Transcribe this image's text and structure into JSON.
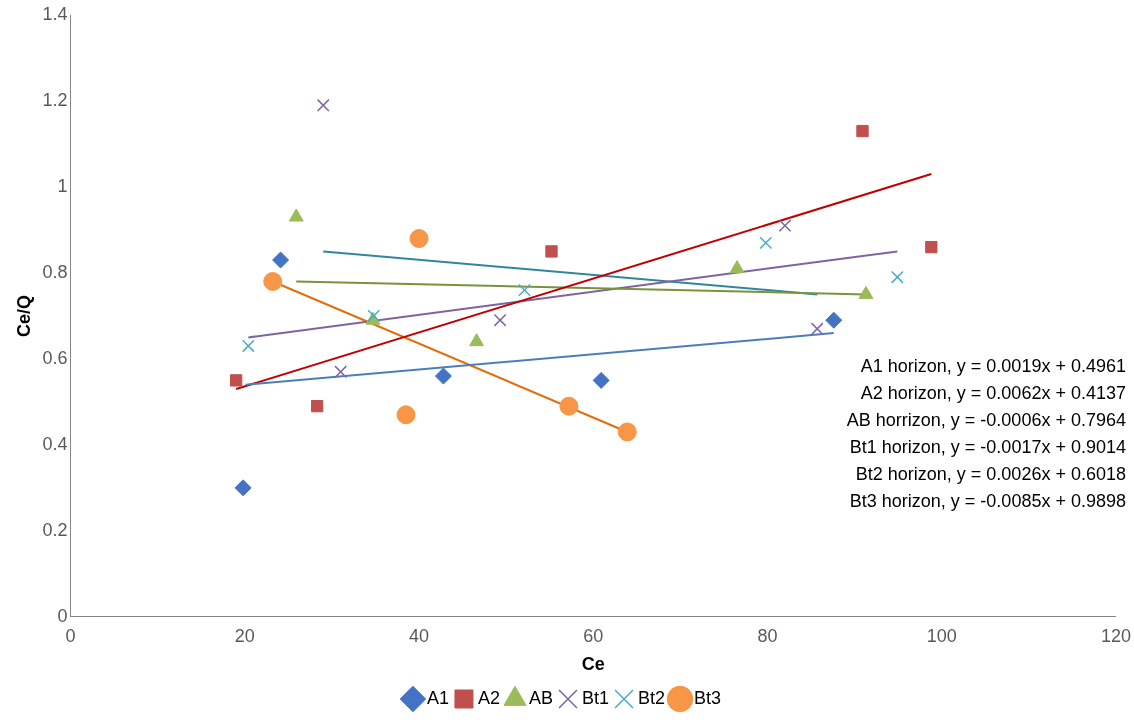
{
  "chart_data": {
    "type": "scatter",
    "xlabel": "Ce",
    "ylabel": "Ce/Q",
    "xlim": [
      0,
      120
    ],
    "xticks": [
      0,
      20,
      40,
      60,
      80,
      100,
      120
    ],
    "ylim": [
      0,
      1.4
    ],
    "yticks": [
      0,
      0.2,
      0.4,
      0.6,
      0.8,
      1,
      1.2,
      1.4
    ],
    "grid": false,
    "legend": "bottom",
    "series": [
      {
        "name": "A1",
        "color": "#4472c4",
        "marker": "diamond",
        "x": [
          19.8,
          24.1,
          42.8,
          60.9,
          87.6
        ],
        "values": [
          0.3,
          0.83,
          0.56,
          0.55,
          0.69
        ]
      },
      {
        "name": "A2",
        "color": "#c0504d",
        "marker": "square",
        "x": [
          19.0,
          28.3,
          55.2,
          90.9,
          98.8
        ],
        "values": [
          0.55,
          0.49,
          0.85,
          1.13,
          0.86
        ]
      },
      {
        "name": "AB",
        "color": "#9bbb59",
        "marker": "triangle",
        "x": [
          25.9,
          34.7,
          46.6,
          76.5,
          91.3
        ],
        "values": [
          0.93,
          0.69,
          0.64,
          0.81,
          0.75
        ]
      },
      {
        "name": "Bt1",
        "color": "#8064a2",
        "marker": "cross",
        "x": [
          29.0,
          31.0,
          49.3,
          82.0,
          85.7
        ],
        "values": [
          1.19,
          0.57,
          0.69,
          0.91,
          0.67
        ]
      },
      {
        "name": "Bt2",
        "color": "#4bacc6",
        "marker": "cross",
        "x": [
          20.4,
          34.8,
          52.1,
          79.8,
          94.9
        ],
        "values": [
          0.63,
          0.7,
          0.76,
          0.87,
          0.79
        ]
      },
      {
        "name": "Bt3",
        "color": "#f79646",
        "marker": "circle",
        "x": [
          23.2,
          40.0,
          38.5,
          57.2,
          63.9
        ],
        "values": [
          0.78,
          0.88,
          0.47,
          0.49,
          0.43
        ]
      },
      {
        "type": "line",
        "color": "#4a7ebb",
        "marker": "none",
        "x": [
          20.1,
          87.6
        ],
        "values": [
          0.54,
          0.66
        ]
      },
      {
        "type": "line",
        "color": "#c00000",
        "marker": "none",
        "x": [
          19.0,
          98.8
        ],
        "values": [
          0.53,
          1.03
        ]
      },
      {
        "type": "line",
        "color": "#77933c",
        "marker": "none",
        "x": [
          25.9,
          91.3
        ],
        "values": [
          0.78,
          0.75
        ]
      },
      {
        "type": "line",
        "color": "#7f62a1",
        "marker": "none",
        "x": [
          20.4,
          94.9
        ],
        "values": [
          0.65,
          0.85
        ]
      },
      {
        "type": "line",
        "color": "#31859c",
        "marker": "none",
        "x": [
          29.0,
          85.7
        ],
        "values": [
          0.85,
          0.75
        ]
      },
      {
        "type": "line",
        "color": "#e46c0a",
        "marker": "none",
        "x": [
          23.2,
          63.9
        ],
        "values": [
          0.78,
          0.43
        ]
      }
    ],
    "annotations": [
      "A1 horizon, y = 0.0019x + 0.4961",
      "A2 horizon, y = 0.0062x + 0.4137",
      "AB horrizon, y = -0.0006x + 0.7964",
      "Bt1 horizon, y = -0.0017x + 0.9014",
      "Bt2 horizon, y = 0.0026x + 0.6018",
      "Bt3 horizon, y = -0.0085x + 0.9898"
    ]
  }
}
